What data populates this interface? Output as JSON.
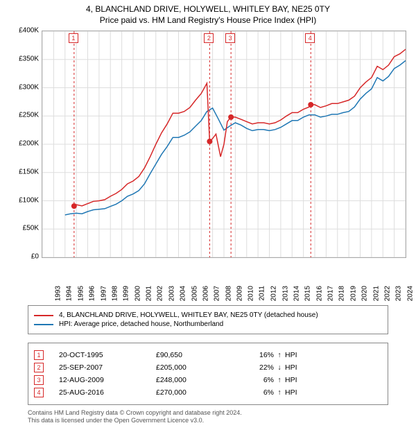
{
  "title": {
    "line1": "4, BLANCHLAND DRIVE, HOLYWELL, WHITLEY BAY, NE25 0TY",
    "line2": "Price paid vs. HM Land Registry's House Price Index (HPI)"
  },
  "chart": {
    "type": "line",
    "background_color": "#ffffff",
    "grid_color": "#dddddd",
    "axis_color": "#aaaaaa",
    "x": {
      "min": 1993,
      "max": 2025,
      "ticks": [
        1993,
        1994,
        1995,
        1996,
        1997,
        1998,
        1999,
        2000,
        2001,
        2002,
        2003,
        2004,
        2005,
        2006,
        2007,
        2008,
        2009,
        2010,
        2011,
        2012,
        2013,
        2014,
        2015,
        2016,
        2017,
        2018,
        2019,
        2020,
        2021,
        2022,
        2023,
        2024,
        2025
      ]
    },
    "y": {
      "min": 0,
      "max": 400000,
      "ticks": [
        0,
        50000,
        100000,
        150000,
        200000,
        250000,
        300000,
        350000,
        400000
      ],
      "tick_labels": [
        "£0",
        "£50K",
        "£100K",
        "£150K",
        "£200K",
        "£250K",
        "£300K",
        "£350K",
        "£400K"
      ]
    },
    "series": [
      {
        "name": "property",
        "label": "4, BLANCHLAND DRIVE, HOLYWELL, WHITLEY BAY, NE25 0TY (detached house)",
        "color": "#d62728",
        "line_width": 1.5,
        "points": [
          [
            1995.8,
            90650
          ],
          [
            1996.0,
            93000
          ],
          [
            1996.5,
            91000
          ],
          [
            1997.0,
            95000
          ],
          [
            1997.5,
            99000
          ],
          [
            1998.0,
            100000
          ],
          [
            1998.5,
            102000
          ],
          [
            1999.0,
            108000
          ],
          [
            1999.5,
            113000
          ],
          [
            2000.0,
            120000
          ],
          [
            2000.5,
            130000
          ],
          [
            2001.0,
            135000
          ],
          [
            2001.5,
            143000
          ],
          [
            2002.0,
            158000
          ],
          [
            2002.5,
            178000
          ],
          [
            2003.0,
            200000
          ],
          [
            2003.5,
            220000
          ],
          [
            2004.0,
            236000
          ],
          [
            2004.5,
            255000
          ],
          [
            2005.0,
            255000
          ],
          [
            2005.5,
            258000
          ],
          [
            2006.0,
            265000
          ],
          [
            2006.5,
            278000
          ],
          [
            2007.0,
            290000
          ],
          [
            2007.5,
            308000
          ],
          [
            2007.74,
            205000
          ],
          [
            2008.0,
            210000
          ],
          [
            2008.3,
            218000
          ],
          [
            2008.7,
            178000
          ],
          [
            2009.0,
            200000
          ],
          [
            2009.3,
            240000
          ],
          [
            2009.6,
            248000
          ],
          [
            2010.0,
            248000
          ],
          [
            2010.5,
            244000
          ],
          [
            2011.0,
            240000
          ],
          [
            2011.5,
            236000
          ],
          [
            2012.0,
            238000
          ],
          [
            2012.5,
            238000
          ],
          [
            2013.0,
            236000
          ],
          [
            2013.5,
            238000
          ],
          [
            2014.0,
            243000
          ],
          [
            2014.5,
            250000
          ],
          [
            2015.0,
            256000
          ],
          [
            2015.5,
            256000
          ],
          [
            2016.0,
            262000
          ],
          [
            2016.5,
            266000
          ],
          [
            2016.65,
            270000
          ],
          [
            2017.0,
            270000
          ],
          [
            2017.5,
            265000
          ],
          [
            2018.0,
            268000
          ],
          [
            2018.5,
            272000
          ],
          [
            2019.0,
            272000
          ],
          [
            2019.5,
            275000
          ],
          [
            2020.0,
            278000
          ],
          [
            2020.5,
            285000
          ],
          [
            2021.0,
            300000
          ],
          [
            2021.5,
            310000
          ],
          [
            2022.0,
            318000
          ],
          [
            2022.5,
            338000
          ],
          [
            2023.0,
            332000
          ],
          [
            2023.5,
            340000
          ],
          [
            2024.0,
            355000
          ],
          [
            2024.5,
            360000
          ],
          [
            2025.0,
            368000
          ]
        ]
      },
      {
        "name": "hpi",
        "label": "HPI: Average price, detached house, Northumberland",
        "color": "#1f77b4",
        "line_width": 1.5,
        "points": [
          [
            1995.0,
            75000
          ],
          [
            1995.5,
            77000
          ],
          [
            1996.0,
            78000
          ],
          [
            1996.5,
            77000
          ],
          [
            1997.0,
            81000
          ],
          [
            1997.5,
            84000
          ],
          [
            1998.0,
            85000
          ],
          [
            1998.5,
            86000
          ],
          [
            1999.0,
            90000
          ],
          [
            1999.5,
            94000
          ],
          [
            2000.0,
            100000
          ],
          [
            2000.5,
            108000
          ],
          [
            2001.0,
            112000
          ],
          [
            2001.5,
            118000
          ],
          [
            2002.0,
            130000
          ],
          [
            2002.5,
            148000
          ],
          [
            2003.0,
            165000
          ],
          [
            2003.5,
            182000
          ],
          [
            2004.0,
            196000
          ],
          [
            2004.5,
            212000
          ],
          [
            2005.0,
            212000
          ],
          [
            2005.5,
            216000
          ],
          [
            2006.0,
            222000
          ],
          [
            2006.5,
            232000
          ],
          [
            2007.0,
            242000
          ],
          [
            2007.5,
            258000
          ],
          [
            2008.0,
            264000
          ],
          [
            2008.5,
            245000
          ],
          [
            2009.0,
            225000
          ],
          [
            2009.5,
            232000
          ],
          [
            2010.0,
            238000
          ],
          [
            2010.5,
            234000
          ],
          [
            2011.0,
            228000
          ],
          [
            2011.5,
            224000
          ],
          [
            2012.0,
            226000
          ],
          [
            2012.5,
            226000
          ],
          [
            2013.0,
            224000
          ],
          [
            2013.5,
            226000
          ],
          [
            2014.0,
            230000
          ],
          [
            2014.5,
            236000
          ],
          [
            2015.0,
            242000
          ],
          [
            2015.5,
            242000
          ],
          [
            2016.0,
            248000
          ],
          [
            2016.5,
            252000
          ],
          [
            2017.0,
            252000
          ],
          [
            2017.5,
            248000
          ],
          [
            2018.0,
            250000
          ],
          [
            2018.5,
            253000
          ],
          [
            2019.0,
            253000
          ],
          [
            2019.5,
            256000
          ],
          [
            2020.0,
            258000
          ],
          [
            2020.5,
            266000
          ],
          [
            2021.0,
            280000
          ],
          [
            2021.5,
            290000
          ],
          [
            2022.0,
            298000
          ],
          [
            2022.5,
            318000
          ],
          [
            2023.0,
            312000
          ],
          [
            2023.5,
            320000
          ],
          [
            2024.0,
            334000
          ],
          [
            2024.5,
            340000
          ],
          [
            2025.0,
            348000
          ]
        ]
      }
    ],
    "sale_markers": [
      {
        "n": "1",
        "x": 1995.8,
        "y": 90650
      },
      {
        "n": "2",
        "x": 2007.74,
        "y": 205000
      },
      {
        "n": "3",
        "x": 2009.62,
        "y": 248000
      },
      {
        "n": "4",
        "x": 2016.65,
        "y": 270000
      }
    ],
    "label_fontsize": 10
  },
  "legend": {
    "items": [
      {
        "color": "#d62728",
        "text": "4, BLANCHLAND DRIVE, HOLYWELL, WHITLEY BAY, NE25 0TY (detached house)"
      },
      {
        "color": "#1f77b4",
        "text": "HPI: Average price, detached house, Northumberland"
      }
    ]
  },
  "sales": [
    {
      "n": "1",
      "date": "20-OCT-1995",
      "price": "£90,650",
      "diff": "16%",
      "arrow": "↑",
      "diff_label": "HPI"
    },
    {
      "n": "2",
      "date": "25-SEP-2007",
      "price": "£205,000",
      "diff": "22%",
      "arrow": "↓",
      "diff_label": "HPI"
    },
    {
      "n": "3",
      "date": "12-AUG-2009",
      "price": "£248,000",
      "diff": "6%",
      "arrow": "↑",
      "diff_label": "HPI"
    },
    {
      "n": "4",
      "date": "25-AUG-2016",
      "price": "£270,000",
      "diff": "6%",
      "arrow": "↑",
      "diff_label": "HPI"
    }
  ],
  "footer": {
    "line1": "Contains HM Land Registry data © Crown copyright and database right 2024.",
    "line2": "This data is licensed under the Open Government Licence v3.0."
  }
}
